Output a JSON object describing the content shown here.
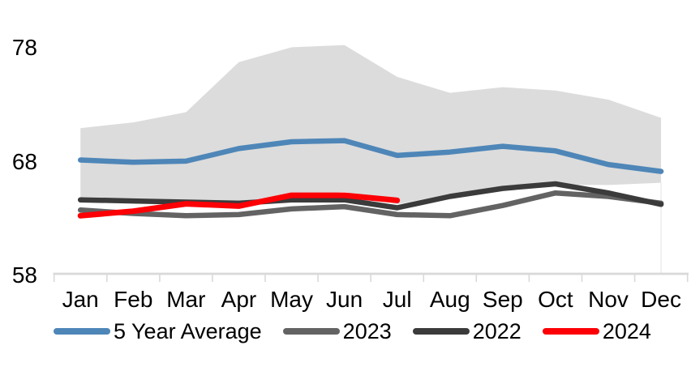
{
  "chart_data": {
    "type": "line",
    "title": "",
    "categories": [
      "Jan",
      "Feb",
      "Mar",
      "Apr",
      "May",
      "Jun",
      "Jul",
      "Aug",
      "Sep",
      "Oct",
      "Nov",
      "Dec"
    ],
    "y_axis": {
      "ticks": [
        "58",
        "68",
        "78"
      ],
      "min": 58,
      "max": 80
    },
    "ylim": [
      58,
      80
    ],
    "grid": false,
    "legend_position": "bottom",
    "axis_color": "#D9D9D9",
    "text_color": "#000000",
    "background_color": "#FFFFFF",
    "band": {
      "name": "5 year range",
      "color": "#DCDCDC",
      "top": [
        70.8,
        71.3,
        72.2,
        76.6,
        77.9,
        78.1,
        75.3,
        73.9,
        74.4,
        74.1,
        73.3,
        71.7
      ],
      "bottom": [
        64.7,
        64.5,
        64.4,
        64.3,
        64.8,
        65.2,
        64.1,
        65.0,
        65.5,
        65.8,
        65.8,
        66.0
      ]
    },
    "series": [
      {
        "name": "5 Year Average",
        "color": "#4E86B8",
        "values": [
          68.0,
          67.8,
          67.9,
          69.0,
          69.6,
          69.7,
          68.4,
          68.7,
          69.2,
          68.8,
          67.6,
          67.0
        ]
      },
      {
        "name": "2023",
        "color": "#636363",
        "values": [
          63.6,
          63.3,
          63.1,
          63.2,
          63.7,
          63.9,
          63.2,
          63.1,
          64.0,
          65.1,
          64.8,
          64.2
        ]
      },
      {
        "name": "2022",
        "color": "#3B3B3B",
        "values": [
          64.5,
          64.4,
          64.3,
          64.2,
          64.5,
          64.5,
          63.8,
          64.8,
          65.5,
          65.9,
          65.1,
          64.1
        ]
      },
      {
        "name": "2024",
        "color": "#FC0006",
        "values": [
          63.1,
          63.5,
          64.15,
          63.95,
          64.9,
          64.9,
          64.45
        ]
      }
    ]
  }
}
